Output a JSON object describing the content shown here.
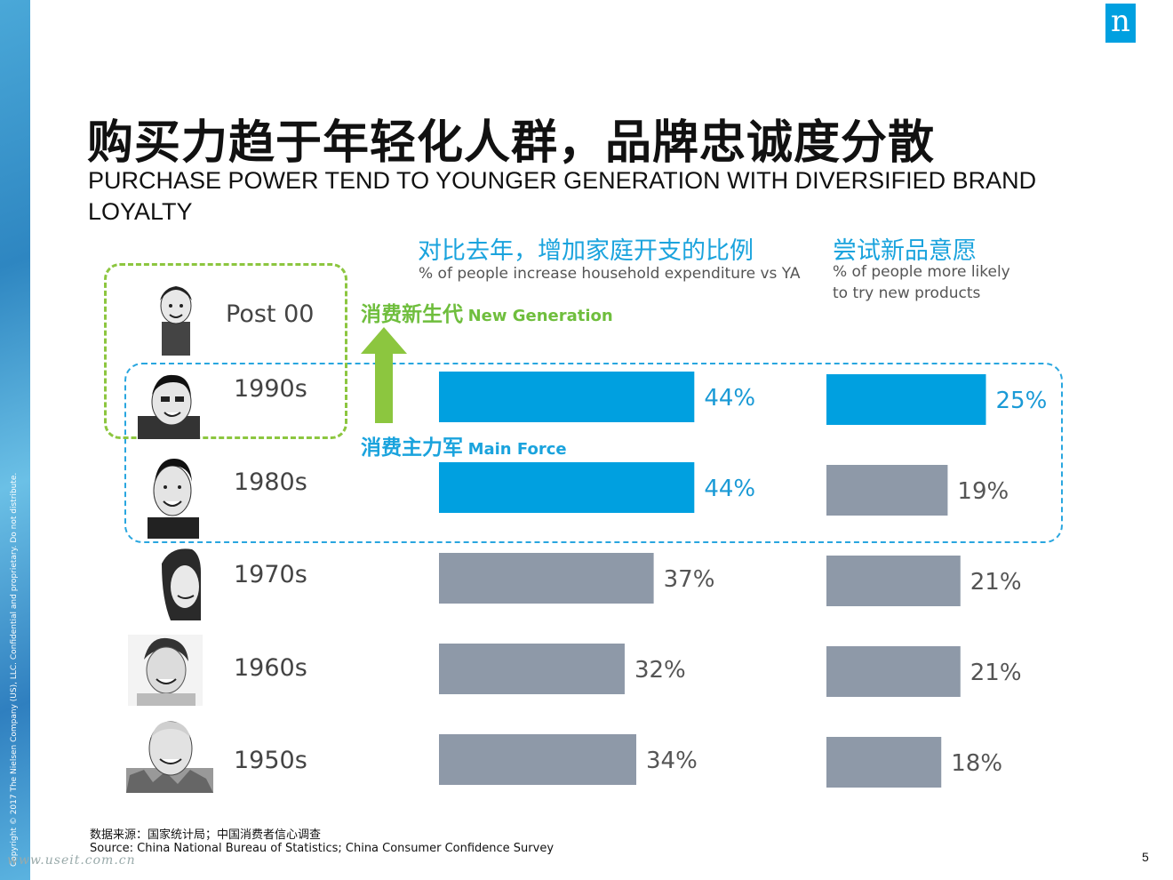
{
  "side_copyright": "Copyright © 2017 The Nielsen Company (US), LLC. Confidential and proprietary. Do not distribute.",
  "logo": "n",
  "title_cn": "购买力趋于年轻化人群，品牌忠诚度分散",
  "title_en": "PURCHASE POWER TEND TO YOUNGER GENERATION WITH DIVERSIFIED BRAND LOYALTY",
  "tags": {
    "new_cn": "消费新生代",
    "new_en": "New Generation",
    "main_cn": "消费主力军",
    "main_en": "Main Force"
  },
  "colors": {
    "highlight": "#00a0e0",
    "normal": "#8e99a8",
    "green": "#8cc63f"
  },
  "generations": [
    "Post 00",
    "1990s",
    "1980s",
    "1970s",
    "1960s",
    "1950s"
  ],
  "chart_data": [
    {
      "type": "bar",
      "orientation": "horizontal",
      "title": "对比去年，增加家庭开支的比例",
      "subtitle": "% of people increase household expenditure vs YA",
      "categories": [
        "1990s",
        "1980s",
        "1970s",
        "1960s",
        "1950s"
      ],
      "values": [
        44,
        44,
        37,
        32,
        34
      ],
      "labels": [
        "44%",
        "44%",
        "37%",
        "32%",
        "34%"
      ],
      "highlight": [
        true,
        true,
        false,
        false,
        false
      ],
      "grid": false
    },
    {
      "type": "bar",
      "orientation": "horizontal",
      "title": "尝试新品意愿",
      "subtitle": "% of people more likely to try new products",
      "categories": [
        "1990s",
        "1980s",
        "1970s",
        "1960s",
        "1950s"
      ],
      "values": [
        25,
        19,
        21,
        21,
        18
      ],
      "labels": [
        "25%",
        "19%",
        "21%",
        "21%",
        "18%"
      ],
      "highlight": [
        true,
        false,
        false,
        false,
        false
      ],
      "grid": false
    }
  ],
  "footer": {
    "source_cn": "数据来源：国家统计局；中国消费者信心调查",
    "source_en": "Source: China National Bureau of Statistics; China Consumer Confidence Survey"
  },
  "page_number": "5",
  "watermark": "www.useit.com.cn"
}
